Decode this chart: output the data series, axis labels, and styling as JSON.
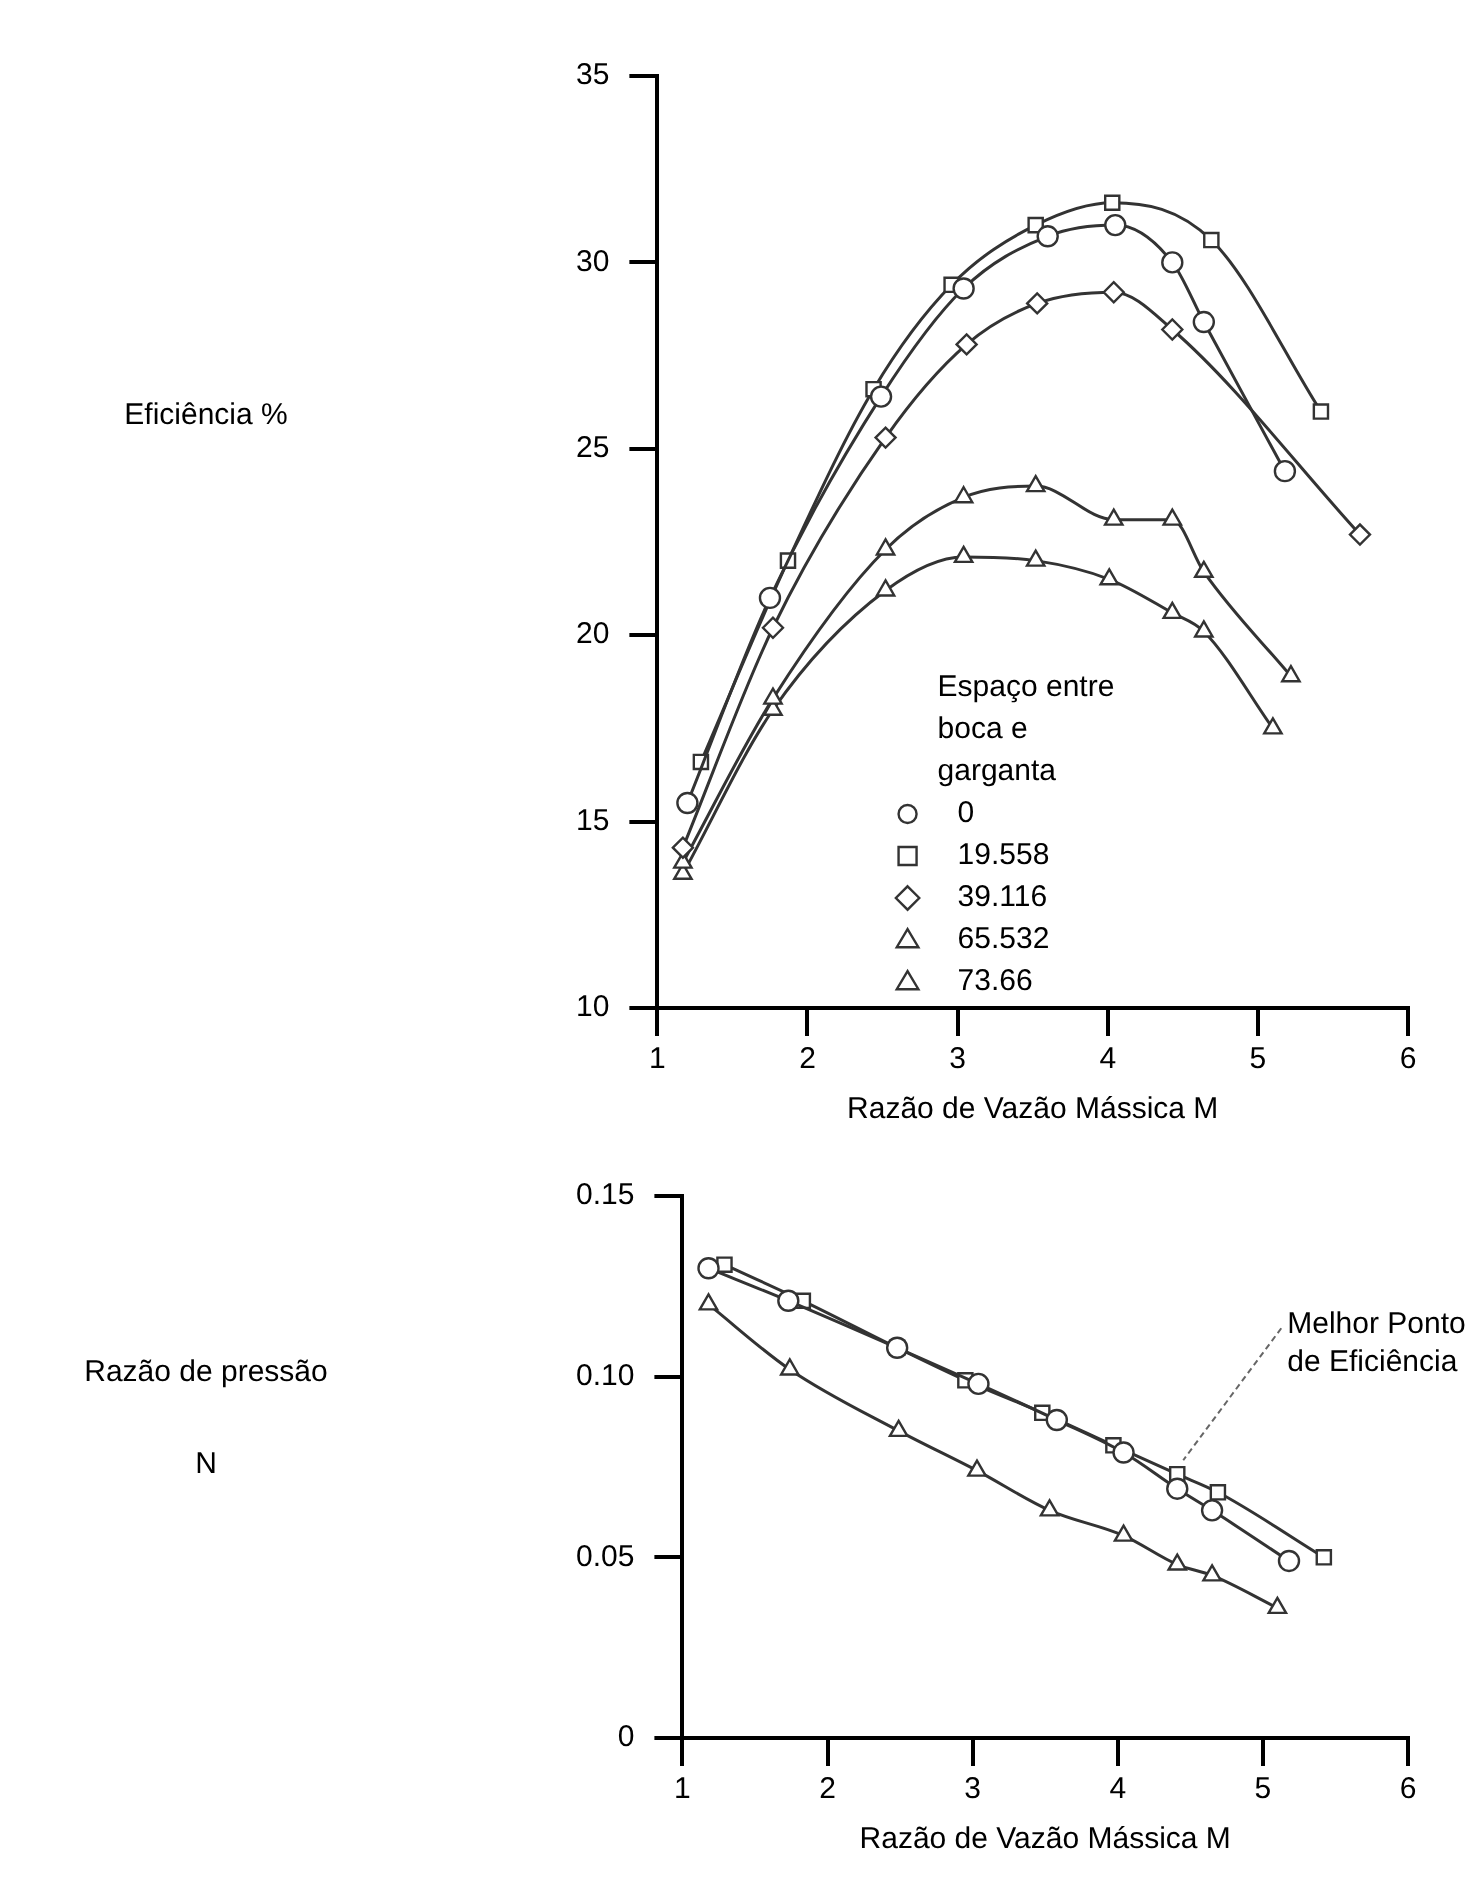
{
  "chart_data": [
    {
      "type": "line",
      "xlabel": "Razão de Vazão Mássica M",
      "ylabel": "Eficiência %",
      "xlim": [
        1,
        6
      ],
      "xticks": [
        1,
        2,
        3,
        4,
        5,
        6
      ],
      "ylim": [
        10,
        35
      ],
      "yticks": [
        10,
        15,
        20,
        25,
        30,
        35
      ],
      "grid": false,
      "legend": "bottom",
      "legend_title": "Espaço entre boca e garganta",
      "series": [
        {
          "name": "0",
          "color": "#333333",
          "marker": "circle",
          "x": [
            1.2,
            1.75,
            2.49,
            3.04,
            3.6,
            4.05,
            4.43,
            4.64,
            5.18
          ],
          "values": [
            15.5,
            21.0,
            26.4,
            29.3,
            30.7,
            31.0,
            30.0,
            28.4,
            24.4
          ]
        },
        {
          "name": "19.558",
          "color": "#333333",
          "marker": "square",
          "x": [
            1.29,
            1.87,
            2.44,
            2.96,
            3.52,
            4.03,
            4.69,
            5.42
          ],
          "values": [
            16.6,
            22.0,
            26.6,
            29.4,
            31.0,
            31.6,
            30.6,
            26.0
          ]
        },
        {
          "name": "39.116",
          "color": "#333333",
          "marker": "diamond",
          "x": [
            1.17,
            1.77,
            2.52,
            3.06,
            3.53,
            4.04,
            4.43,
            5.68
          ],
          "values": [
            14.3,
            20.2,
            25.3,
            27.8,
            28.9,
            29.2,
            28.2,
            22.7
          ]
        },
        {
          "name": "65.532",
          "color": "#333333",
          "marker": "triangle",
          "x": [
            1.17,
            1.77,
            2.52,
            3.04,
            3.52,
            4.04,
            4.43,
            4.64,
            5.22
          ],
          "values": [
            13.9,
            18.3,
            22.3,
            23.7,
            24.0,
            23.1,
            23.1,
            21.7,
            18.9
          ]
        },
        {
          "name": "73.66",
          "color": "#333333",
          "marker": "triangle",
          "x": [
            1.17,
            1.77,
            2.52,
            3.04,
            3.52,
            4.01,
            4.43,
            4.64,
            5.1
          ],
          "values": [
            13.6,
            18.0,
            21.2,
            22.1,
            22.0,
            21.5,
            20.6,
            20.1,
            17.5
          ]
        }
      ]
    },
    {
      "type": "line",
      "xlabel": "Razão de Vazão Mássica M",
      "ylabel": "Razão de pressão\nN",
      "xlim": [
        1,
        6
      ],
      "xticks": [
        1,
        2,
        3,
        4,
        5,
        6
      ],
      "ylim": [
        0,
        0.15
      ],
      "yticks": [
        0,
        0.05,
        {
          "value": 0.1,
          "label": "0.10"
        },
        0.15
      ],
      "grid": false,
      "annotations": [
        {
          "text": "Melhor Ponto\nde Eficiência",
          "x": 4.41,
          "y": 0.073
        }
      ],
      "series": [
        {
          "color": "#333333",
          "marker": "circle",
          "x": [
            1.18,
            1.73,
            2.48,
            3.04,
            3.58,
            4.04,
            4.41,
            4.65,
            5.18
          ],
          "values": [
            0.13,
            0.121,
            0.108,
            0.098,
            0.088,
            0.079,
            0.069,
            0.063,
            0.049
          ]
        },
        {
          "color": "#333333",
          "marker": "square",
          "x": [
            1.29,
            1.83,
            2.48,
            2.95,
            3.48,
            3.97,
            4.41,
            4.69,
            5.42
          ],
          "values": [
            0.131,
            0.121,
            0.108,
            0.099,
            0.09,
            0.081,
            0.073,
            0.068,
            0.05
          ]
        },
        {
          "color": "#333333",
          "marker": "triangle",
          "x": [
            1.18,
            1.74,
            2.49,
            3.03,
            3.53,
            4.04,
            4.41,
            4.65,
            5.1
          ],
          "values": [
            0.12,
            0.102,
            0.085,
            0.074,
            0.063,
            0.056,
            0.048,
            0.045,
            0.036
          ]
        }
      ]
    }
  ]
}
